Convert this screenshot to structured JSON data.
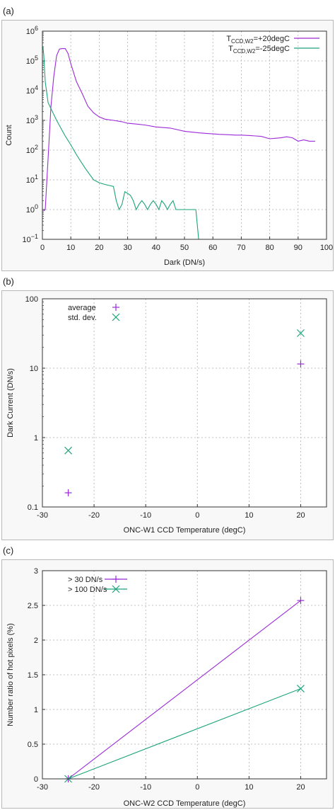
{
  "panels": [
    {
      "label": "(a)"
    },
    {
      "label": "(b)"
    },
    {
      "label": "(c)"
    }
  ],
  "colors": {
    "magenta": "#9b2ad8",
    "green": "#1aa37a",
    "blue": "#2060c0",
    "grid": "#b0b0b0"
  },
  "chart_data": [
    {
      "type": "line",
      "xlabel": "Dark (DN/s)",
      "ylabel": "Count",
      "xlim": [
        0,
        100
      ],
      "ylim": [
        0.1,
        1000000
      ],
      "yscale": "log",
      "xticks": [
        "0",
        "10",
        "20",
        "30",
        "40",
        "50",
        "60",
        "70",
        "80",
        "90",
        "100"
      ],
      "yticks": [
        "10^-1",
        "10^0",
        "10^1",
        "10^2",
        "10^3",
        "10^4",
        "10^5",
        "10^6"
      ],
      "grid": true,
      "legend_position": "top-right",
      "series": [
        {
          "name": "T_CCD,W2=+20degC",
          "legend": {
            "base": "T",
            "sub": "CCD,W2",
            "rest": "=+20degC"
          },
          "color": "#9b2ad8",
          "x": [
            0.5,
            1,
            2,
            3,
            4,
            5,
            6,
            7,
            8,
            9,
            10,
            12,
            14,
            16,
            18,
            20,
            22,
            25,
            28,
            30,
            33,
            36,
            40,
            45,
            50,
            55,
            58,
            60,
            62,
            65,
            68,
            70,
            73,
            75,
            77,
            80,
            82,
            84,
            86,
            88,
            90,
            92,
            94,
            96
          ],
          "y": [
            0.9,
            1,
            50,
            3000,
            30000,
            150000,
            250000,
            260000,
            260000,
            180000,
            80000,
            20000,
            8000,
            3000,
            1800,
            1300,
            1100,
            1000,
            900,
            800,
            750,
            700,
            600,
            550,
            430,
            380,
            360,
            350,
            340,
            330,
            320,
            320,
            310,
            300,
            290,
            240,
            250,
            260,
            280,
            260,
            200,
            220,
            200,
            200
          ]
        },
        {
          "name": "T_CCD,W2=-25degC",
          "legend": {
            "base": "T",
            "sub": "CCD,W2",
            "rest": "=-25degC"
          },
          "color": "#1aa37a",
          "x": [
            0.2,
            0.5,
            1,
            2,
            3,
            5,
            8,
            10,
            12,
            15,
            18,
            20,
            22,
            25,
            26,
            27,
            28,
            29,
            30,
            31,
            32,
            33,
            34,
            35,
            36,
            37,
            38,
            39,
            40,
            41,
            42,
            43,
            44,
            45,
            46,
            47,
            48,
            50,
            52,
            54,
            55
          ],
          "y": [
            300000,
            150000,
            20000,
            4000,
            2500,
            1000,
            300,
            150,
            70,
            25,
            10,
            8,
            7,
            6,
            2,
            1,
            1.5,
            4,
            3.5,
            3,
            2,
            1,
            1.5,
            2,
            1.5,
            1,
            1.5,
            2,
            1.5,
            1,
            2,
            1.5,
            1,
            1.5,
            2,
            1,
            1,
            1,
            1,
            1,
            0.1
          ]
        }
      ]
    },
    {
      "type": "scatter",
      "xlabel": "ONC-W1 CCD Temperature (degC)",
      "ylabel": "Dark Current (DN/s)",
      "xlim": [
        -30,
        25
      ],
      "ylim": [
        0.1,
        100
      ],
      "yscale": "log",
      "xticks": [
        "-30",
        "-20",
        "-10",
        "0",
        "10",
        "20"
      ],
      "yticks": [
        "0.1",
        "1",
        "10",
        "100"
      ],
      "grid": true,
      "legend_position": "top-left",
      "series": [
        {
          "name": "average",
          "marker": "+",
          "color": "#9b2ad8",
          "x": [
            -25,
            20
          ],
          "y": [
            0.16,
            11.5
          ]
        },
        {
          "name": "std. dev.",
          "marker": "x",
          "color": "#1aa37a",
          "x": [
            -25,
            20
          ],
          "y": [
            0.65,
            32
          ]
        }
      ]
    },
    {
      "type": "line",
      "xlabel": "ONC-W2 CCD Temperature (degC)",
      "ylabel": "Number ratio of hot pixels (%)",
      "xlim": [
        -30,
        25
      ],
      "ylim": [
        0,
        3
      ],
      "xticks": [
        "-30",
        "-20",
        "-10",
        "0",
        "10",
        "20"
      ],
      "yticks": [
        "0",
        "0.5",
        "1",
        "1.5",
        "2",
        "2.5",
        "3"
      ],
      "grid": true,
      "legend_position": "top-left",
      "series": [
        {
          "name": "> 30 DN/s",
          "marker": "+",
          "color": "#9b2ad8",
          "x": [
            -25,
            20
          ],
          "y": [
            0,
            2.57
          ]
        },
        {
          "name": "> 100 DN/s",
          "marker": "x",
          "color": "#1aa37a",
          "x": [
            -25,
            20
          ],
          "y": [
            0,
            1.3
          ]
        }
      ]
    }
  ]
}
